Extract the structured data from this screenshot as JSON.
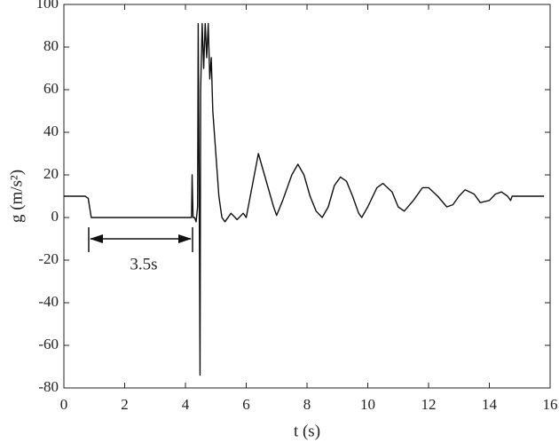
{
  "chart_data": {
    "type": "line",
    "xlabel": "t (s)",
    "ylabel": "g (m/s²)",
    "annotation": "3.5s",
    "color": "#111111",
    "x": [
      0,
      0.7,
      0.8,
      0.9,
      4.2,
      4.22,
      4.25,
      4.3,
      4.35,
      4.4,
      4.42,
      4.45,
      4.48,
      4.5,
      4.55,
      4.6,
      4.65,
      4.7,
      4.75,
      4.8,
      4.85,
      4.9,
      5.0,
      5.1,
      5.2,
      5.3,
      5.5,
      5.7,
      5.9,
      6.0,
      6.2,
      6.4,
      6.5,
      6.7,
      6.9,
      7.0,
      7.2,
      7.5,
      7.7,
      7.9,
      8.1,
      8.3,
      8.5,
      8.7,
      8.9,
      9.1,
      9.3,
      9.5,
      9.7,
      9.8,
      10.0,
      10.3,
      10.5,
      10.8,
      11.0,
      11.2,
      11.5,
      11.8,
      12.0,
      12.3,
      12.6,
      12.8,
      13.0,
      13.2,
      13.5,
      13.7,
      14.0,
      14.2,
      14.4,
      14.6,
      14.7,
      14.75,
      15.8
    ],
    "values": [
      10,
      10,
      9,
      0,
      0,
      20,
      0,
      0,
      -2,
      5,
      91,
      20,
      -74,
      60,
      91,
      70,
      91,
      75,
      91,
      65,
      75,
      50,
      30,
      10,
      0,
      -2,
      2,
      -1,
      2,
      0,
      15,
      30,
      25,
      15,
      5,
      1,
      8,
      20,
      25,
      20,
      10,
      3,
      0,
      5,
      15,
      19,
      17,
      10,
      2,
      0,
      5,
      14,
      16,
      12,
      5,
      3,
      8,
      14,
      14,
      10,
      5,
      6,
      10,
      13,
      11,
      7,
      8,
      11,
      12,
      10,
      8,
      10,
      10
    ],
    "xlim": [
      0,
      16
    ],
    "xticks": [
      0,
      2,
      4,
      6,
      8,
      10,
      12,
      14,
      16
    ],
    "ylim": [
      -80,
      100
    ],
    "yticks": [
      -80,
      -60,
      -40,
      -20,
      0,
      20,
      40,
      60,
      80,
      100
    ]
  }
}
